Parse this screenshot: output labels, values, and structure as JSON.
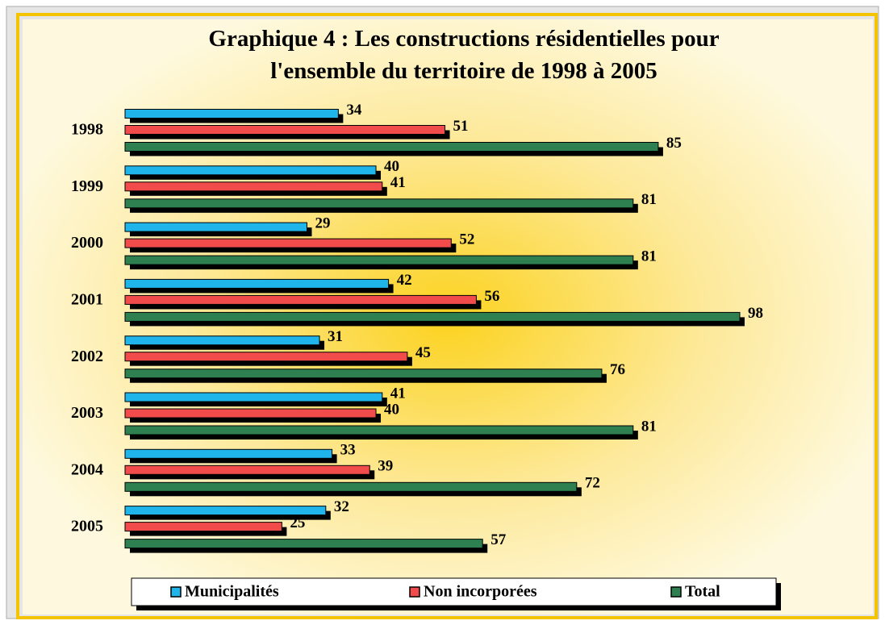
{
  "chart_data": {
    "type": "bar",
    "orientation": "horizontal",
    "title": "Graphique 4 :  Les constructions résidentielles pour l'ensemble du territoire de 1998 à 2005",
    "categories": [
      "1998",
      "1999",
      "2000",
      "2001",
      "2002",
      "2003",
      "2004",
      "2005"
    ],
    "series": [
      {
        "name": "Municipalités",
        "color": "#1fb4ea",
        "values": [
          34,
          40,
          29,
          42,
          31,
          41,
          33,
          32
        ]
      },
      {
        "name": "Non incorporées",
        "color": "#f24b4b",
        "values": [
          51,
          41,
          52,
          56,
          45,
          40,
          39,
          25
        ]
      },
      {
        "name": "Total",
        "color": "#2e8050",
        "values": [
          85,
          81,
          81,
          98,
          76,
          81,
          72,
          57
        ]
      }
    ]
  }
}
